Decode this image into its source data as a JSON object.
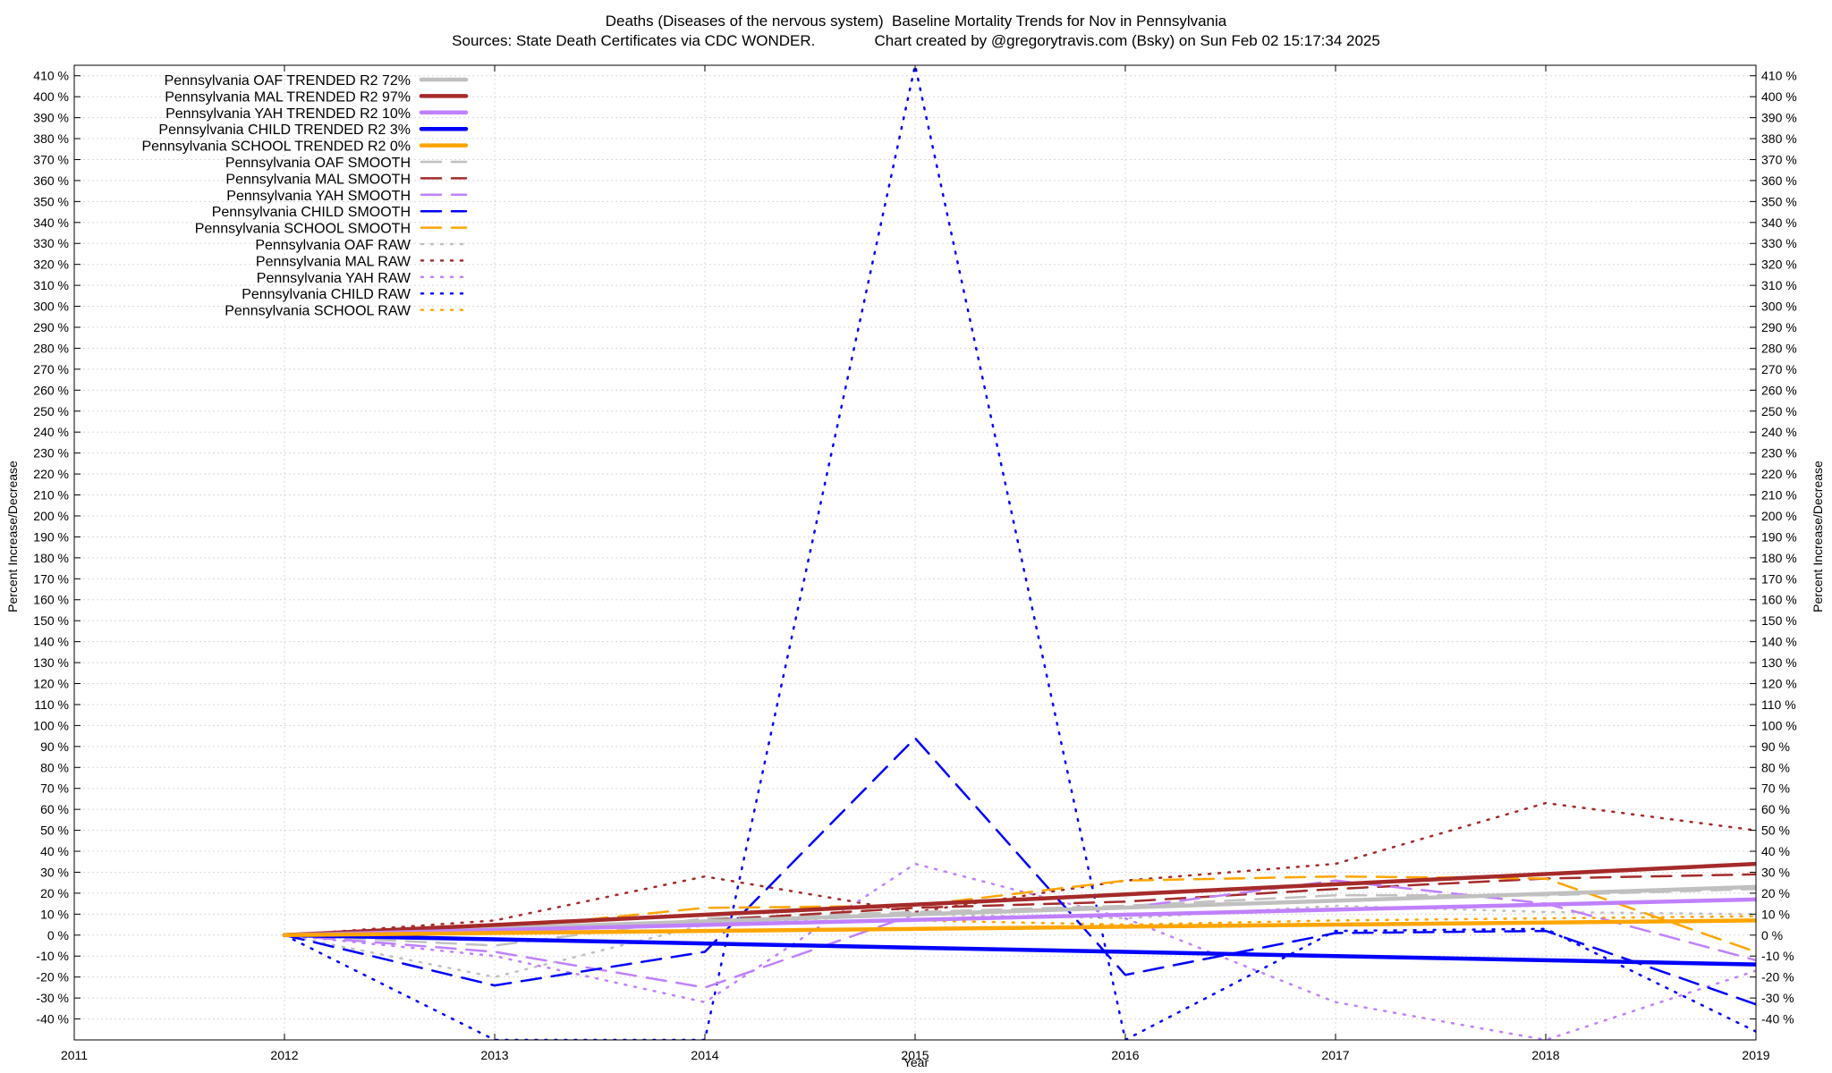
{
  "chart_data": {
    "type": "line",
    "title": "Deaths (Diseases of the nervous system)  Baseline Mortality Trends for Nov in Pennsylvania",
    "subtitle": "Sources: State Death Certificates via CDC WONDER.              Chart created by @gregorytravis.com (Bsky) on Sun Feb 02 15:17:34 2025",
    "xlabel": "Year",
    "ylabel": "Percent Increase/Decrease",
    "y2label": "Percent Increase/Decrease",
    "xlim": [
      2011,
      2019
    ],
    "ylim": [
      -50,
      415
    ],
    "x_ticks": [
      2011,
      2012,
      2013,
      2014,
      2015,
      2016,
      2017,
      2018,
      2019
    ],
    "y_ticks": [
      -40,
      -30,
      -20,
      -10,
      0,
      10,
      20,
      30,
      40,
      50,
      60,
      70,
      80,
      90,
      100,
      110,
      120,
      130,
      140,
      150,
      160,
      170,
      180,
      190,
      200,
      210,
      220,
      230,
      240,
      250,
      260,
      270,
      280,
      290,
      300,
      310,
      320,
      330,
      340,
      350,
      360,
      370,
      380,
      390,
      400,
      410
    ],
    "y_tick_suffix": " %",
    "grid": true,
    "legend_position": "top-left",
    "colors": {
      "OAF": "#c0c0c0",
      "MAL": "#a52a2a",
      "YAH": "#c080ff",
      "CHILD": "#0000ff",
      "SCHOOL": "#ffa500"
    },
    "series": [
      {
        "name": "Pennsylvania OAF TRENDED R2  72%",
        "group": "OAF",
        "style": "trended",
        "x": [
          2012,
          2019
        ],
        "y": [
          0,
          23
        ]
      },
      {
        "name": "Pennsylvania MAL TRENDED R2  97%",
        "group": "MAL",
        "style": "trended",
        "x": [
          2012,
          2019
        ],
        "y": [
          0,
          34
        ]
      },
      {
        "name": "Pennsylvania YAH TRENDED R2  10%",
        "group": "YAH",
        "style": "trended",
        "x": [
          2012,
          2019
        ],
        "y": [
          0,
          17
        ]
      },
      {
        "name": "Pennsylvania CHILD TRENDED R2   3%",
        "group": "CHILD",
        "style": "trended",
        "x": [
          2012,
          2019
        ],
        "y": [
          0,
          -14
        ]
      },
      {
        "name": "Pennsylvania SCHOOL TRENDED R2   0%",
        "group": "SCHOOL",
        "style": "trended",
        "x": [
          2012,
          2019
        ],
        "y": [
          0,
          7
        ]
      },
      {
        "name": "Pennsylvania OAF SMOOTH",
        "group": "OAF",
        "style": "smooth",
        "x": [
          2012,
          2013,
          2014,
          2015,
          2016,
          2017,
          2018,
          2019
        ],
        "y": [
          0,
          -5,
          8,
          11,
          14,
          19,
          19,
          22
        ]
      },
      {
        "name": "Pennsylvania MAL SMOOTH",
        "group": "MAL",
        "style": "smooth",
        "x": [
          2012,
          2013,
          2014,
          2015,
          2016,
          2017,
          2018,
          2019
        ],
        "y": [
          0,
          2,
          7,
          13,
          16,
          22,
          27,
          29
        ]
      },
      {
        "name": "Pennsylvania YAH SMOOTH",
        "group": "YAH",
        "style": "smooth",
        "x": [
          2012,
          2013,
          2014,
          2015,
          2016,
          2017,
          2018,
          2019
        ],
        "y": [
          0,
          -8,
          -25,
          10,
          13,
          26,
          15,
          -12
        ]
      },
      {
        "name": "Pennsylvania CHILD SMOOTH",
        "group": "CHILD",
        "style": "smooth",
        "x": [
          2012,
          2013,
          2014,
          2015,
          2016,
          2017,
          2018,
          2019
        ],
        "y": [
          0,
          -24,
          -8,
          94,
          -19,
          1,
          2,
          -33
        ]
      },
      {
        "name": "Pennsylvania SCHOOL SMOOTH",
        "group": "SCHOOL",
        "style": "smooth",
        "x": [
          2012,
          2013,
          2014,
          2015,
          2016,
          2017,
          2018,
          2019
        ],
        "y": [
          0,
          3,
          13,
          14,
          26,
          28,
          27,
          -8
        ]
      },
      {
        "name": "Pennsylvania OAF RAW",
        "group": "OAF",
        "style": "raw",
        "x": [
          2012,
          2013,
          2014,
          2015,
          2016,
          2017,
          2018,
          2019
        ],
        "y": [
          0,
          -20,
          5,
          10,
          8,
          14,
          11,
          10
        ]
      },
      {
        "name": "Pennsylvania MAL RAW",
        "group": "MAL",
        "style": "raw",
        "x": [
          2012,
          2013,
          2014,
          2015,
          2016,
          2017,
          2018,
          2019
        ],
        "y": [
          0,
          7,
          28,
          11,
          26,
          34,
          63,
          50
        ]
      },
      {
        "name": "Pennsylvania YAH RAW",
        "group": "YAH",
        "style": "raw",
        "x": [
          2012,
          2013,
          2014,
          2015,
          2016,
          2017,
          2018,
          2019
        ],
        "y": [
          0,
          -10,
          -32,
          34,
          8,
          -32,
          -50,
          -17
        ]
      },
      {
        "name": "Pennsylvania CHILD RAW",
        "group": "CHILD",
        "style": "raw",
        "x": [
          2012,
          2013,
          2014,
          2015,
          2016,
          2017,
          2018,
          2019
        ],
        "y": [
          0,
          -50,
          -50,
          415,
          -50,
          2,
          3,
          -46
        ]
      },
      {
        "name": "Pennsylvania SCHOOL RAW",
        "group": "SCHOOL",
        "style": "raw",
        "x": [
          2012,
          2013,
          2014,
          2015,
          2016,
          2017,
          2018,
          2019
        ],
        "y": [
          0,
          2,
          5,
          7,
          5,
          7,
          8,
          9
        ]
      }
    ]
  }
}
